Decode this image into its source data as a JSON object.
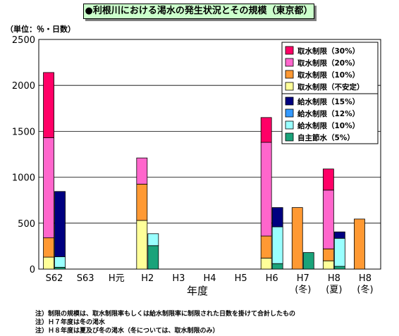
{
  "title": "●利根川における渇水の発生状況とその規模（東京都）",
  "unit_label": "（単位：％・日数）",
  "notes": [
    "注）制限の規模は、取水制限率もしくは給水制限率に制限された日数を掛けて合計したもの",
    "注）Ｈ７年度は冬の渇水",
    "注）Ｈ８年度は夏及び冬の渇水（冬については、取水制限のみ）"
  ],
  "chart_data": {
    "type": "bar",
    "stacked": true,
    "xlabel": "年度",
    "ylabel": "",
    "ylim": [
      0,
      2500
    ],
    "yticks": [
      0,
      500,
      1000,
      1500,
      2000,
      2500
    ],
    "grid": true,
    "legend_position": "top-right",
    "categories": [
      {
        "label": "S62",
        "sub": ""
      },
      {
        "label": "S63",
        "sub": ""
      },
      {
        "label": "H元",
        "sub": ""
      },
      {
        "label": "H2",
        "sub": ""
      },
      {
        "label": "H3",
        "sub": ""
      },
      {
        "label": "H4",
        "sub": ""
      },
      {
        "label": "H5",
        "sub": ""
      },
      {
        "label": "H6",
        "sub": ""
      },
      {
        "label": "H7",
        "sub": "(冬)"
      },
      {
        "label": "H8",
        "sub": "(夏)"
      },
      {
        "label": "H8",
        "sub": "(冬)"
      }
    ],
    "groups": [
      {
        "name": "取水制限",
        "series": [
          {
            "name": "取水制限（不安定）",
            "color": "#ffff99",
            "values": [
              130,
              0,
              0,
              530,
              0,
              0,
              0,
              120,
              0,
              90,
              0
            ]
          },
          {
            "name": "取水制限（10%）",
            "color": "#ff9933",
            "values": [
              210,
              0,
              0,
              395,
              0,
              0,
              0,
              240,
              670,
              130,
              545
            ]
          },
          {
            "name": "取水制限（20%）",
            "color": "#ff66cc",
            "values": [
              1090,
              0,
              0,
              285,
              0,
              0,
              0,
              1020,
              0,
              640,
              0
            ]
          },
          {
            "name": "取水制限（30%）",
            "color": "#ff0066",
            "values": [
              710,
              0,
              0,
              0,
              0,
              0,
              0,
              270,
              0,
              230,
              0
            ]
          }
        ]
      },
      {
        "name": "給水制限",
        "series": [
          {
            "name": "自主節水（5%）",
            "color": "#1aa37a",
            "values": [
              20,
              0,
              0,
              255,
              0,
              0,
              0,
              60,
              180,
              30,
              0
            ]
          },
          {
            "name": "給水制限（10%）",
            "color": "#99ffff",
            "values": [
              115,
              0,
              0,
              130,
              0,
              0,
              0,
              400,
              0,
              305,
              0
            ]
          },
          {
            "name": "給水制限（12%）",
            "color": "#3399ff",
            "values": [
              0,
              0,
              0,
              0,
              0,
              0,
              0,
              0,
              0,
              0,
              0
            ]
          },
          {
            "name": "給水制限（15%）",
            "color": "#000080",
            "values": [
              710,
              0,
              0,
              0,
              0,
              0,
              0,
              210,
              0,
              70,
              0
            ]
          }
        ]
      }
    ],
    "legend": [
      {
        "name": "取水制限（30%）",
        "color": "#ff0066"
      },
      {
        "name": "取水制限（20%）",
        "color": "#ff66cc"
      },
      {
        "name": "取水制限（10%）",
        "color": "#ff9933"
      },
      {
        "name": "取水制限（不安定）",
        "color": "#ffff99"
      },
      {
        "name": "給水制限（15%）",
        "color": "#000080"
      },
      {
        "name": "給水制限（12%）",
        "color": "#3399ff"
      },
      {
        "name": "給水制限（10%）",
        "color": "#99ffff"
      },
      {
        "name": "自主節水（5%）",
        "color": "#1aa37a"
      }
    ]
  }
}
